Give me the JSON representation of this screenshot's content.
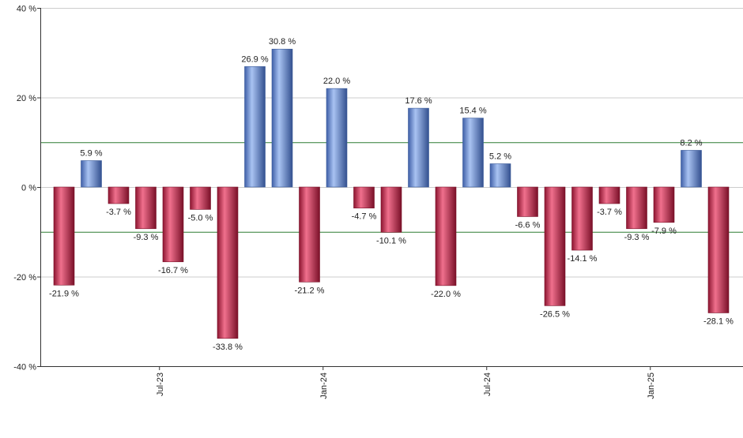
{
  "chart_data": {
    "type": "bar",
    "title": "",
    "xlabel": "",
    "ylabel": "",
    "ylim": [
      -40,
      40
    ],
    "y_ticks": [
      40,
      20,
      0,
      -20,
      -40
    ],
    "y_tick_labels": [
      "40 %",
      "20 %",
      "0 %",
      "-20 %",
      "-40 %"
    ],
    "reference_lines": [
      10,
      -10
    ],
    "grid": true,
    "colors": {
      "positive": "#6f95dc",
      "negative": "#d23a5c",
      "reference": "#2e7d32",
      "grid": "#cccccc",
      "axis": "#333333"
    },
    "values": [
      -21.9,
      5.9,
      -3.7,
      -9.3,
      -16.7,
      -5.0,
      -33.8,
      26.9,
      30.8,
      -21.2,
      22.0,
      -4.7,
      -10.1,
      17.6,
      -22.0,
      15.4,
      5.2,
      -6.6,
      -26.5,
      -14.1,
      -3.7,
      -9.3,
      -7.9,
      8.2,
      -28.1
    ],
    "value_labels": [
      "-21.9 %",
      "5.9 %",
      "-3.7 %",
      "-9.3 %",
      "-16.7 %",
      "-5.0 %",
      "-33.8 %",
      "26.9 %",
      "30.8 %",
      "-21.2 %",
      "22.0 %",
      "-4.7 %",
      "-10.1 %",
      "17.6 %",
      "-22.0 %",
      "15.4 %",
      "5.2 %",
      "-6.6 %",
      "-26.5 %",
      "-14.1 %",
      "-3.7 %",
      "-9.3 %",
      "-7.9 %",
      "8.2 %",
      "-28.1 %"
    ],
    "x_ticks": [
      {
        "label": "Jul-23",
        "index": 3.5
      },
      {
        "label": "Jan-24",
        "index": 9.5
      },
      {
        "label": "Jul-24",
        "index": 15.5
      },
      {
        "label": "Jan-25",
        "index": 21.5
      }
    ]
  }
}
